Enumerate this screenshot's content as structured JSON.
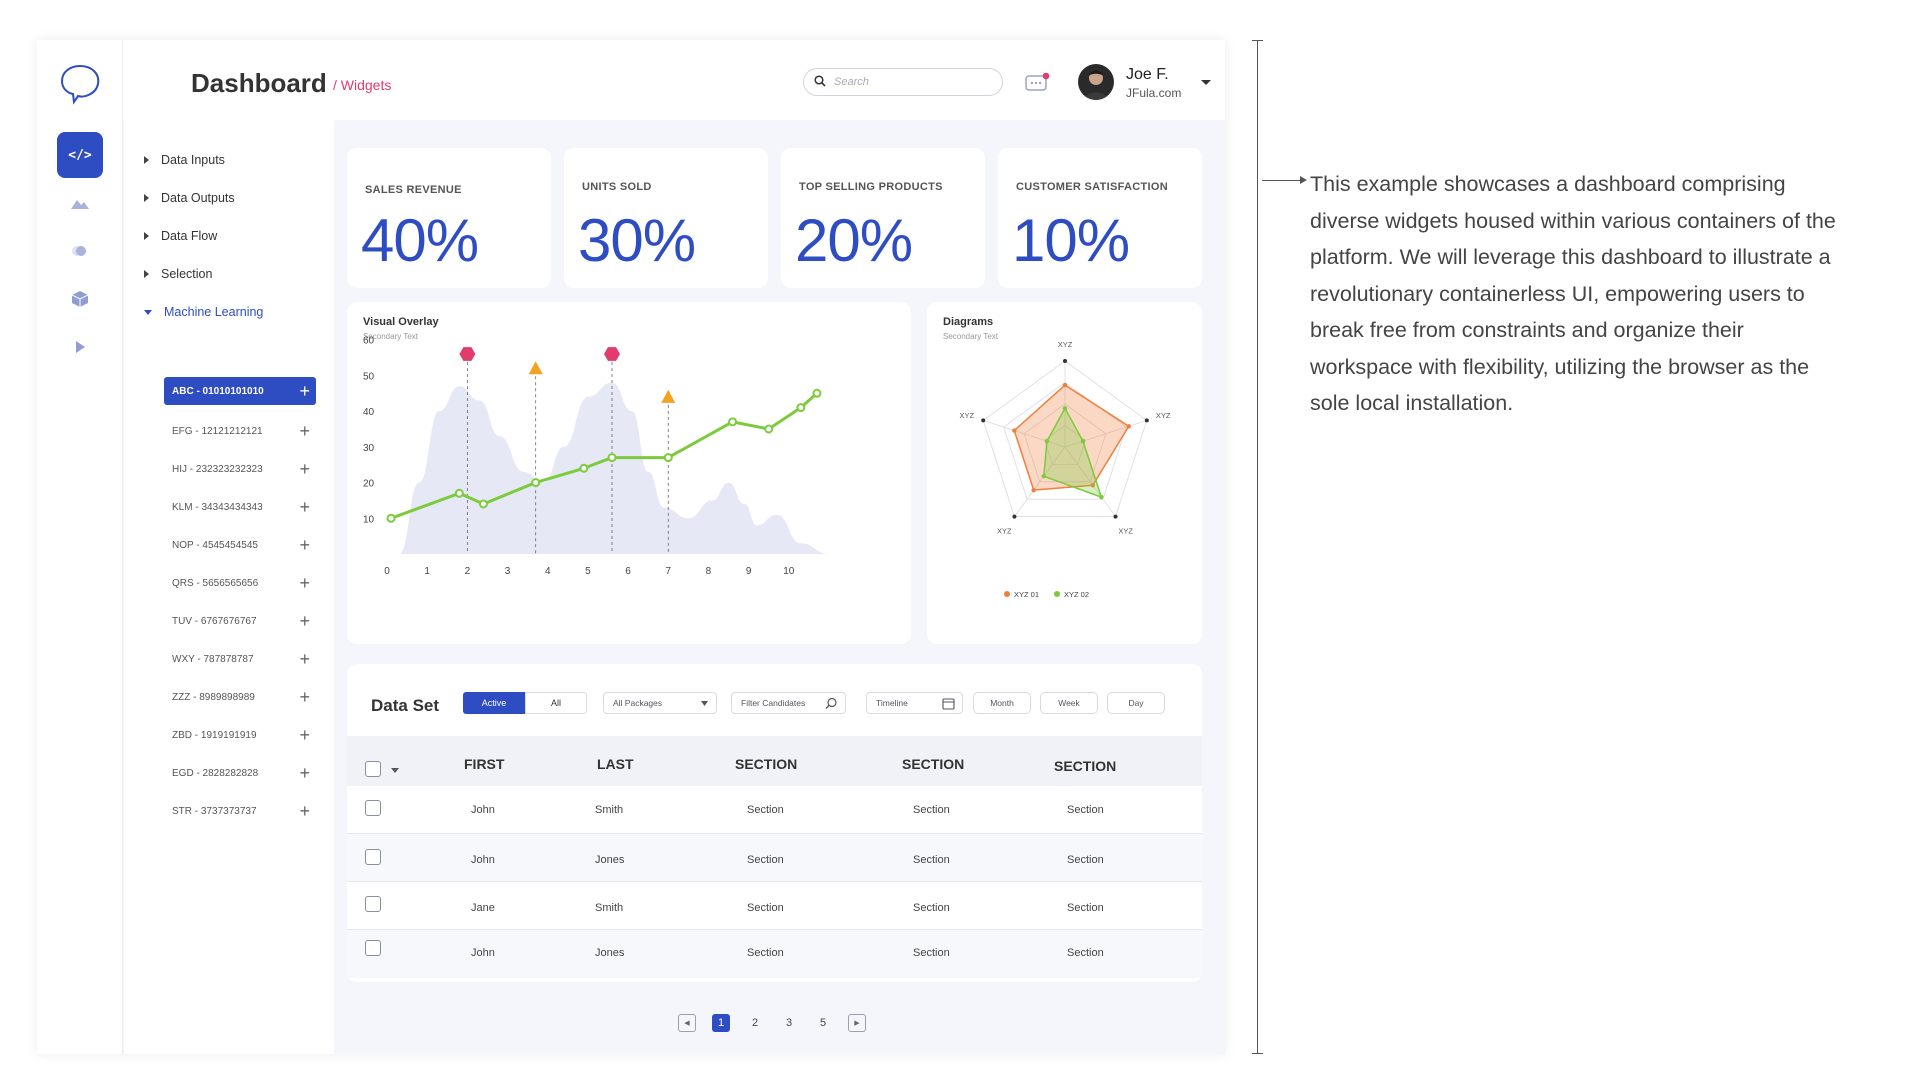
{
  "header": {
    "title": "Dashboard",
    "breadcrumb": "/ Widgets",
    "search_placeholder": "Search",
    "user_name": "Joe F.",
    "user_site": "JFula.com"
  },
  "rail": {
    "code_label": "</>",
    "icons": [
      "brain-logo-icon",
      "code-icon",
      "mountain-icon",
      "toggle-icon",
      "cube-icon",
      "play-icon"
    ]
  },
  "tree": {
    "items": [
      "Data Inputs",
      "Data Outputs",
      "Data Flow",
      "Selection",
      "Machine Learning"
    ],
    "sub_items": [
      "ABC - 01010101010",
      "EFG - 12121212121",
      "HIJ - 232323232323",
      "KLM - 34343434343",
      "NOP - 4545454545",
      "QRS - 5656565656",
      "TUV - 6767676767",
      "WXY - 787878787",
      "ZZZ - 8989898989",
      "ZBD - 1919191919",
      "EGD - 2828282828",
      "STR - 3737373737"
    ]
  },
  "kpis": [
    {
      "label": "SALES REVENUE",
      "value": "40%"
    },
    {
      "label": "UNITS SOLD",
      "value": "30%"
    },
    {
      "label": "TOP SELLING PRODUCTS",
      "value": "20%"
    },
    {
      "label": "CUSTOMER SATISFACTION",
      "value": "10%"
    }
  ],
  "overlay": {
    "title": "Visual Overlay",
    "subtitle": "Secondary Text"
  },
  "diagrams": {
    "title": "Diagrams",
    "subtitle": "Secondary Text"
  },
  "chart_data": [
    {
      "type": "line",
      "title": "Visual Overlay",
      "subtitle": "Secondary Text",
      "x_ticks": [
        0,
        1,
        2,
        3,
        4,
        5,
        6,
        7,
        8,
        9,
        10
      ],
      "y_ticks": [
        10,
        20,
        30,
        40,
        50,
        60
      ],
      "xlim": [
        0,
        11
      ],
      "ylim": [
        0,
        70
      ],
      "series": [
        {
          "values": [
            [
              0.1,
              10
            ],
            [
              1.8,
              17
            ],
            [
              2.4,
              14
            ],
            [
              3.7,
              20
            ],
            [
              4.9,
              24
            ],
            [
              5.6,
              27
            ],
            [
              7.0,
              27
            ],
            [
              8.6,
              37
            ],
            [
              9.5,
              35
            ],
            [
              10.3,
              41
            ],
            [
              10.7,
              45
            ]
          ]
        }
      ],
      "area": [
        [
          0.3,
          0
        ],
        [
          0.8,
          20
        ],
        [
          1.3,
          40
        ],
        [
          1.8,
          47
        ],
        [
          2.3,
          43
        ],
        [
          2.8,
          33
        ],
        [
          3.4,
          23
        ],
        [
          3.9,
          20
        ],
        [
          4.4,
          30
        ],
        [
          5.0,
          44
        ],
        [
          5.6,
          48
        ],
        [
          6.1,
          40
        ],
        [
          6.5,
          23
        ],
        [
          6.9,
          13
        ],
        [
          7.5,
          10
        ],
        [
          8.1,
          15
        ],
        [
          8.5,
          20
        ],
        [
          8.9,
          14
        ],
        [
          9.2,
          8
        ],
        [
          9.7,
          11
        ],
        [
          10.3,
          3
        ],
        [
          11,
          0
        ]
      ],
      "markers": [
        {
          "x": 2.0,
          "y": 56,
          "shape": "hexagon",
          "color": "#e23c6c"
        },
        {
          "x": 3.7,
          "y": 52,
          "shape": "triangle",
          "color": "#f4a21f"
        },
        {
          "x": 5.6,
          "y": 56,
          "shape": "hexagon",
          "color": "#e23c6c"
        },
        {
          "x": 7.0,
          "y": 44,
          "shape": "triangle",
          "color": "#f4a21f"
        }
      ]
    },
    {
      "type": "radar",
      "title": "Diagrams",
      "subtitle": "Secondary Text",
      "axes": [
        "XYZ",
        "XYZ",
        "XYZ",
        "XYZ",
        "XYZ"
      ],
      "max": 1,
      "series": [
        {
          "name": "XYZ 01",
          "color": "#f07f3c",
          "values": [
            0.72,
            0.78,
            0.55,
            0.62,
            0.62
          ]
        },
        {
          "name": "XYZ 02",
          "color": "#7ccb3c",
          "values": [
            0.45,
            0.22,
            0.72,
            0.42,
            0.22
          ]
        }
      ]
    }
  ],
  "dataset": {
    "title": "Data Set",
    "tab_active": "Active",
    "tab_all": "All",
    "packages": "All Packages",
    "filter": "Filter Candidates",
    "timeline": "Timeline",
    "month": "Month",
    "week": "Week",
    "day": "Day",
    "columns": [
      "FIRST",
      "LAST",
      "SECTION",
      "SECTION",
      "SECTION"
    ],
    "rows": [
      [
        "John",
        "Smith",
        "Section",
        "Section",
        "Section"
      ],
      [
        "John",
        "Jones",
        "Section",
        "Section",
        "Section"
      ],
      [
        "Jane",
        "Smith",
        "Section",
        "Section",
        "Section"
      ],
      [
        "John",
        "Jones",
        "Section",
        "Section",
        "Section"
      ]
    ]
  },
  "pagination": {
    "prev": "◀",
    "next": "▶",
    "pages": [
      "1",
      "2",
      "3",
      "5"
    ]
  },
  "note": "This example showcases a dashboard comprising diverse widgets housed within various containers of the platform. We will leverage this dashboard to illustrate a revolutionary containerless UI, empowering users to break free from constraints and organize their workspace with flexibility, utilizing the browser as the sole local installation.",
  "colors": {
    "primary": "#2f4dc2",
    "accent": "#e23c6c",
    "line": "#7ccb3c",
    "area": "#e6e9f5"
  }
}
